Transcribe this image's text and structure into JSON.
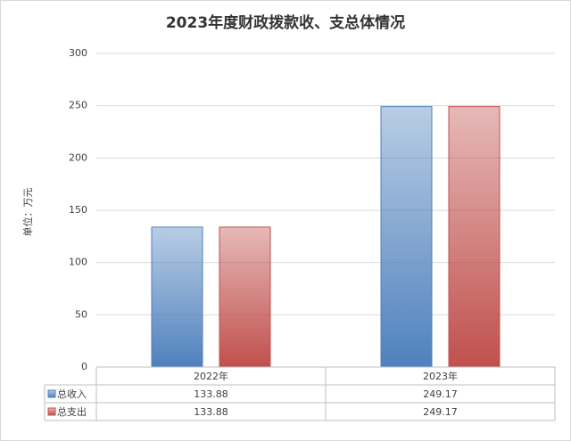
{
  "chart_data": {
    "type": "bar",
    "title": "2023年度财政拨款收、支总体情况",
    "y_label": "单位：万元",
    "categories": [
      "2022年",
      "2023年"
    ],
    "series": [
      {
        "name": "总收入",
        "color": "#4f81bd",
        "values": [
          133.88,
          249.17
        ]
      },
      {
        "name": "总支出",
        "color": "#c0504d",
        "values": [
          133.88,
          249.17
        ]
      }
    ],
    "ylim": [
      0,
      300
    ],
    "yticks": [
      0,
      50,
      100,
      150,
      200,
      250,
      300
    ],
    "grid": true
  }
}
